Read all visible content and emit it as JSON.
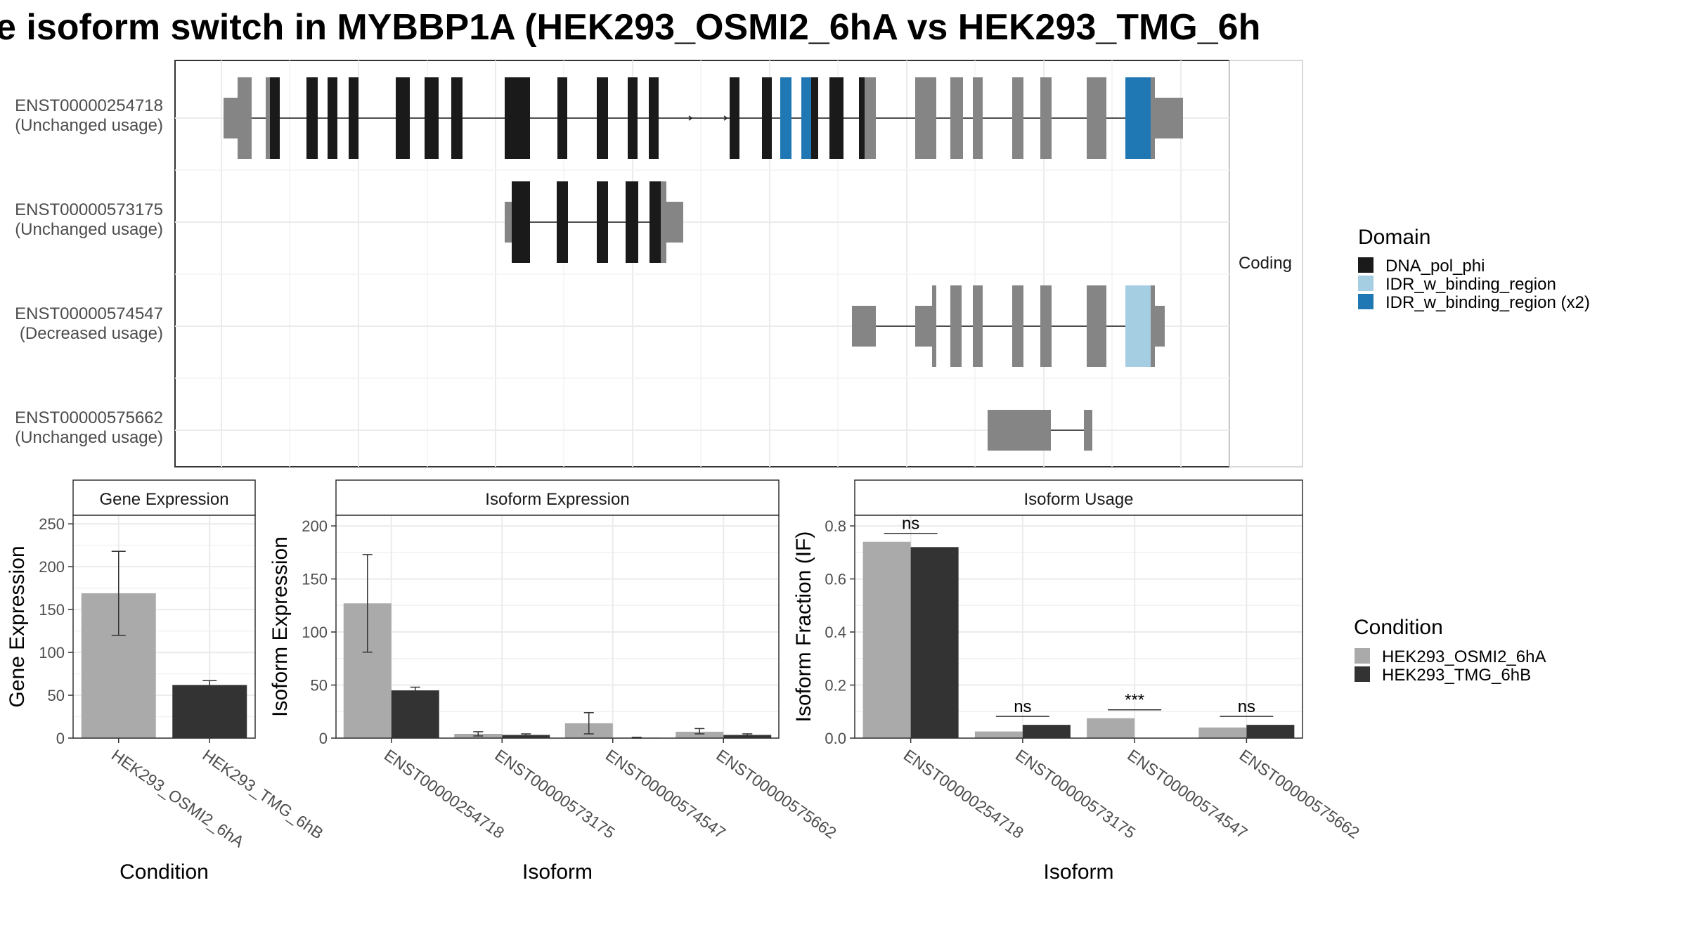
{
  "title": "e isoform switch in MYBBP1A (HEK293_OSMI2_6hA vs HEK293_TMG_6h",
  "structure": {
    "facet_label": "Coding",
    "transcripts": [
      {
        "id": "ENST00000254718",
        "usage": "(Unchanged usage)"
      },
      {
        "id": "ENST00000573175",
        "usage": "(Unchanged usage)"
      },
      {
        "id": "ENST00000574547",
        "usage": "(Decreased usage)"
      },
      {
        "id": "ENST00000575662",
        "usage": "(Unchanged usage)"
      }
    ]
  },
  "legends": {
    "domain": {
      "title": "Domain",
      "items": [
        {
          "label": "DNA_pol_phi",
          "color": "#1a1a1a"
        },
        {
          "label": "IDR_w_binding_region",
          "color": "#a6cee3"
        },
        {
          "label": "IDR_w_binding_region (x2)",
          "color": "#1f78b4"
        }
      ]
    },
    "condition": {
      "title": "Condition",
      "items": [
        {
          "label": "HEK293_OSMI2_6hA",
          "color": "#aaaaaa"
        },
        {
          "label": "HEK293_TMG_6hB",
          "color": "#333333"
        }
      ]
    }
  },
  "chart_data": [
    {
      "type": "bar",
      "title": "Gene Expression",
      "xlabel": "Condition",
      "ylabel": "Gene Expression",
      "ylim": [
        0,
        260
      ],
      "yticks": [
        0,
        50,
        100,
        150,
        200,
        250
      ],
      "categories": [
        "HEK293_OSMI2_6hA",
        "HEK293_TMG_6hB"
      ],
      "values": [
        169,
        62
      ],
      "errors": [
        [
          120,
          218
        ],
        [
          58,
          67
        ]
      ]
    },
    {
      "type": "bar",
      "title": "Isoform Expression",
      "xlabel": "Isoform",
      "ylabel": "Isoform Expression",
      "ylim": [
        0,
        210
      ],
      "yticks": [
        0,
        50,
        100,
        150,
        200
      ],
      "categories": [
        "ENST00000254718",
        "ENST00000573175",
        "ENST00000574547",
        "ENST00000575662"
      ],
      "series": [
        {
          "name": "HEK293_OSMI2_6hA",
          "values": [
            127,
            4,
            14,
            6
          ],
          "errors": [
            [
              81,
              173
            ],
            [
              2,
              6
            ],
            [
              4,
              24
            ],
            [
              4,
              9
            ]
          ]
        },
        {
          "name": "HEK293_TMG_6hB",
          "values": [
            45,
            3,
            0.4,
            3
          ],
          "errors": [
            [
              43,
              48
            ],
            [
              2,
              4
            ],
            [
              0,
              0.8
            ],
            [
              2,
              4
            ]
          ]
        }
      ]
    },
    {
      "type": "bar",
      "title": "Isoform Usage",
      "xlabel": "Isoform",
      "ylabel": "Isoform Fraction (IF)",
      "ylim": [
        0,
        0.84
      ],
      "yticks": [
        "0.0",
        "0.2",
        "0.4",
        "0.6",
        "0.8"
      ],
      "categories": [
        "ENST00000254718",
        "ENST00000573175",
        "ENST00000574547",
        "ENST00000575662"
      ],
      "series": [
        {
          "name": "HEK293_OSMI2_6hA",
          "values": [
            0.74,
            0.025,
            0.075,
            0.04
          ]
        },
        {
          "name": "HEK293_TMG_6hB",
          "values": [
            0.72,
            0.05,
            0.0,
            0.05
          ]
        }
      ],
      "significance": [
        "ns",
        "ns",
        "***",
        "ns"
      ]
    }
  ]
}
